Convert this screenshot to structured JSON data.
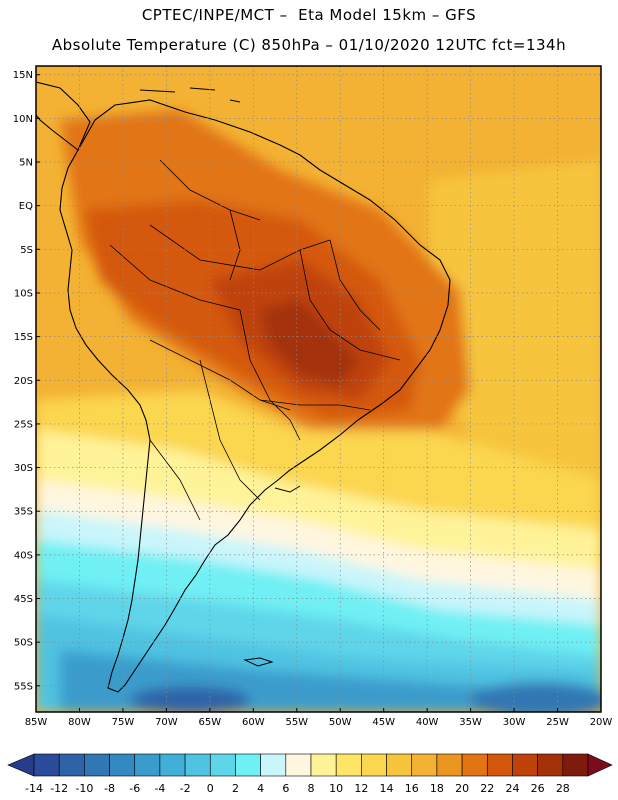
{
  "header": {
    "line1": "CPTEC/INPE/MCT –  Eta Model 15km – GFS",
    "line2": "Absolute Temperature (C) 850hPa – 01/10/2020 12UTC fct=134h"
  },
  "map": {
    "type": "filled-contour-map",
    "region": "South America",
    "lon_range": [
      -85,
      -20
    ],
    "lat_range": [
      -58,
      16
    ],
    "grid": true,
    "lat_labels": [
      "15N",
      "10N",
      "5N",
      "EQ",
      "5S",
      "10S",
      "15S",
      "20S",
      "25S",
      "30S",
      "35S",
      "40S",
      "45S",
      "50S",
      "55S"
    ],
    "lat_values": [
      15,
      10,
      5,
      0,
      -5,
      -10,
      -15,
      -20,
      -25,
      -30,
      -35,
      -40,
      -45,
      -50,
      -55
    ],
    "lon_labels": [
      "85W",
      "80W",
      "75W",
      "70W",
      "65W",
      "60W",
      "55W",
      "50W",
      "45W",
      "40W",
      "35W",
      "30W",
      "25W",
      "20W"
    ],
    "lon_values": [
      -85,
      -80,
      -75,
      -70,
      -65,
      -60,
      -55,
      -50,
      -45,
      -40,
      -35,
      -30,
      -25,
      -20
    ],
    "warmest_zone": "central Brazil, ~24 to 28 C",
    "coldest_zone": "southern ocean south of 45S, ~ -6 to -10 C"
  },
  "legend": {
    "labels": [
      "-14",
      "-12",
      "-10",
      "-8",
      "-6",
      "-4",
      "-2",
      "0",
      "2",
      "4",
      "6",
      "8",
      "10",
      "12",
      "14",
      "16",
      "18",
      "20",
      "22",
      "24",
      "26",
      "28"
    ],
    "colors": [
      "#2a4c9a",
      "#2e63a8",
      "#3177b4",
      "#3489c0",
      "#3a9ccc",
      "#40b0d8",
      "#4fc3e2",
      "#5fd5ea",
      "#6ff0f4",
      "#c9f5fb",
      "#fff6e0",
      "#fff39a",
      "#ffe566",
      "#fbd64f",
      "#f6c53c",
      "#f3b233",
      "#eb961f",
      "#e27414",
      "#d4580c",
      "#bf420a",
      "#a33008",
      "#7e1b0c"
    ],
    "under_color": "#283c8c",
    "over_color": "#7a0c1e"
  }
}
